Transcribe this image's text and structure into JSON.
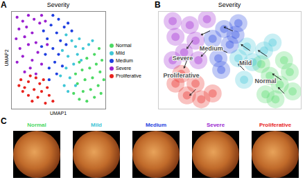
{
  "chart_data": [
    {
      "panel": "A",
      "type": "scatter",
      "title": "Severity",
      "x_label": "UMAP1",
      "y_label": "UMAP2",
      "xlim": [
        0,
        10
      ],
      "ylim": [
        0,
        10
      ],
      "tick_labels": false,
      "legend": "right",
      "series": [
        {
          "name": "Normal",
          "color": "#4cd964",
          "values": [
            [
              7.2,
              1.0
            ],
            [
              8.0,
              0.8
            ],
            [
              8.8,
              1.2
            ],
            [
              9.5,
              1.6
            ],
            [
              7.6,
              1.8
            ],
            [
              8.4,
              2.0
            ],
            [
              9.2,
              2.4
            ],
            [
              9.8,
              3.0
            ],
            [
              7.0,
              2.6
            ],
            [
              7.8,
              3.0
            ],
            [
              8.6,
              3.2
            ],
            [
              9.4,
              3.8
            ],
            [
              6.8,
              3.6
            ],
            [
              7.5,
              4.0
            ],
            [
              8.3,
              4.2
            ],
            [
              9.0,
              4.6
            ],
            [
              9.6,
              5.0
            ],
            [
              7.2,
              4.8
            ],
            [
              8.0,
              5.2
            ],
            [
              8.8,
              5.6
            ],
            [
              9.3,
              6.2
            ],
            [
              6.6,
              1.6
            ]
          ]
        },
        {
          "name": "Mild",
          "color": "#3fc6d6",
          "values": [
            [
              5.6,
              2.4
            ],
            [
              6.2,
              3.2
            ],
            [
              5.8,
              4.2
            ],
            [
              6.6,
              4.6
            ],
            [
              7.0,
              5.6
            ],
            [
              6.0,
              5.4
            ],
            [
              6.8,
              6.4
            ],
            [
              7.6,
              6.2
            ],
            [
              8.2,
              6.6
            ],
            [
              5.4,
              6.0
            ],
            [
              6.4,
              7.0
            ],
            [
              7.2,
              7.2
            ],
            [
              5.2,
              3.4
            ],
            [
              6.0,
              1.8
            ],
            [
              7.4,
              5.0
            ],
            [
              5.8,
              7.6
            ],
            [
              8.6,
              7.0
            ],
            [
              6.8,
              2.4
            ]
          ]
        },
        {
          "name": "Medium",
          "color": "#1f3fe0",
          "values": [
            [
              4.0,
              4.2
            ],
            [
              4.6,
              4.8
            ],
            [
              5.0,
              5.6
            ],
            [
              4.4,
              6.2
            ],
            [
              5.2,
              7.0
            ],
            [
              4.8,
              7.8
            ],
            [
              3.8,
              7.2
            ],
            [
              5.6,
              8.4
            ],
            [
              4.2,
              8.6
            ],
            [
              5.0,
              9.2
            ],
            [
              3.6,
              5.6
            ],
            [
              4.8,
              3.6
            ],
            [
              5.4,
              4.4
            ],
            [
              3.4,
              8.0
            ],
            [
              6.0,
              8.8
            ],
            [
              4.4,
              9.6
            ],
            [
              3.2,
              6.4
            ],
            [
              5.8,
              6.6
            ],
            [
              4.0,
              3.0
            ],
            [
              6.4,
              8.0
            ]
          ]
        },
        {
          "name": "Severe",
          "color": "#9a1fd0",
          "values": [
            [
              0.6,
              9.4
            ],
            [
              1.2,
              9.0
            ],
            [
              1.8,
              9.6
            ],
            [
              2.4,
              9.2
            ],
            [
              0.8,
              8.2
            ],
            [
              1.6,
              8.4
            ],
            [
              2.2,
              7.8
            ],
            [
              3.0,
              8.8
            ],
            [
              0.5,
              7.2
            ],
            [
              1.4,
              7.4
            ],
            [
              2.6,
              6.8
            ],
            [
              3.2,
              9.6
            ],
            [
              0.9,
              6.2
            ],
            [
              1.8,
              6.6
            ],
            [
              2.8,
              5.8
            ],
            [
              3.6,
              9.0
            ],
            [
              1.2,
              5.4
            ],
            [
              2.2,
              5.0
            ],
            [
              3.2,
              4.6
            ],
            [
              2.0,
              4.2
            ],
            [
              3.8,
              6.6
            ],
            [
              0.6,
              4.8
            ],
            [
              2.6,
              3.6
            ],
            [
              1.4,
              3.8
            ]
          ]
        },
        {
          "name": "Proliferative",
          "color": "#e8231e",
          "values": [
            [
              1.0,
              3.0
            ],
            [
              1.4,
              2.2
            ],
            [
              1.8,
              1.4
            ],
            [
              2.2,
              0.8
            ],
            [
              2.8,
              1.2
            ],
            [
              2.4,
              2.0
            ],
            [
              1.8,
              2.8
            ],
            [
              3.2,
              1.8
            ],
            [
              3.6,
              0.6
            ],
            [
              3.0,
              2.6
            ],
            [
              2.6,
              3.2
            ],
            [
              4.0,
              1.4
            ],
            [
              4.4,
              0.8
            ],
            [
              1.2,
              1.8
            ],
            [
              3.4,
              3.0
            ],
            [
              0.8,
              2.4
            ],
            [
              2.0,
              3.4
            ],
            [
              3.8,
              2.2
            ]
          ]
        }
      ]
    },
    {
      "panel": "B",
      "type": "scatter",
      "title": "Severity",
      "xlim": [
        0,
        10
      ],
      "ylim": [
        0,
        10
      ],
      "tick_labels": false,
      "series": [
        {
          "color": "#4cd964",
          "values": [
            [
              7.5,
              1.5
            ],
            [
              8.5,
              2.5
            ],
            [
              9.2,
              3.8
            ],
            [
              7.8,
              3.4
            ],
            [
              8.8,
              5.0
            ],
            [
              7.2,
              4.6
            ],
            [
              9.4,
              1.8
            ],
            [
              8.2,
              1.0
            ]
          ]
        },
        {
          "color": "#3fc6d6",
          "values": [
            [
              6.0,
              3.0
            ],
            [
              6.6,
              4.8
            ],
            [
              7.4,
              6.0
            ],
            [
              6.2,
              6.4
            ],
            [
              8.0,
              6.8
            ],
            [
              5.6,
              5.2
            ]
          ]
        },
        {
          "color": "#1f3fe0",
          "values": [
            [
              4.2,
              5.2
            ],
            [
              5.0,
              6.6
            ],
            [
              4.6,
              8.2
            ],
            [
              3.8,
              7.2
            ],
            [
              5.6,
              8.8
            ],
            [
              4.4,
              4.0
            ],
            [
              5.4,
              7.6
            ]
          ]
        },
        {
          "color": "#9a1fd0",
          "values": [
            [
              1.0,
              9.0
            ],
            [
              2.2,
              8.6
            ],
            [
              1.2,
              7.4
            ],
            [
              2.6,
              7.0
            ],
            [
              3.4,
              9.2
            ],
            [
              1.8,
              5.8
            ],
            [
              2.8,
              5.0
            ],
            [
              1.0,
              5.0
            ]
          ]
        },
        {
          "color": "#e8231e",
          "values": [
            [
              1.2,
              2.6
            ],
            [
              2.0,
              1.4
            ],
            [
              3.0,
              1.0
            ],
            [
              2.6,
              2.6
            ],
            [
              3.8,
              1.6
            ],
            [
              1.6,
              3.6
            ]
          ]
        }
      ],
      "arrows": [
        [
          8.6,
          3.0,
          8.0,
          3.6
        ],
        [
          7.6,
          5.4,
          7.0,
          6.0
        ],
        [
          6.4,
          6.0,
          5.8,
          6.6
        ],
        [
          5.2,
          8.0,
          4.6,
          8.4
        ],
        [
          3.6,
          8.0,
          3.0,
          7.6
        ],
        [
          2.4,
          7.0,
          2.0,
          6.2
        ],
        [
          2.0,
          5.0,
          1.8,
          4.2
        ],
        [
          2.6,
          2.0,
          2.2,
          1.4
        ],
        [
          6.0,
          4.0,
          5.6,
          4.6
        ],
        [
          4.8,
          5.8,
          4.2,
          6.2
        ],
        [
          8.8,
          1.6,
          8.4,
          2.2
        ],
        [
          3.4,
          6.0,
          3.0,
          5.4
        ]
      ],
      "annotations": [
        {
          "text": "Medium",
          "x": 3.7,
          "y": 6.2
        },
        {
          "text": "Mild",
          "x": 6.1,
          "y": 4.7
        },
        {
          "text": "Severe",
          "x": 1.7,
          "y": 5.2
        },
        {
          "text": "Proliferative",
          "x": 1.6,
          "y": 3.4
        },
        {
          "text": "Normal",
          "x": 7.5,
          "y": 2.9
        }
      ]
    }
  ],
  "images": {
    "panel": "C",
    "labels": [
      {
        "text": "Normal",
        "color": "#4cd964"
      },
      {
        "text": "Mild",
        "color": "#3fc6d6"
      },
      {
        "text": "Medium",
        "color": "#1f3fe0"
      },
      {
        "text": "Severe",
        "color": "#9a1fd0"
      },
      {
        "text": "Proliferative",
        "color": "#e8231e"
      }
    ]
  }
}
